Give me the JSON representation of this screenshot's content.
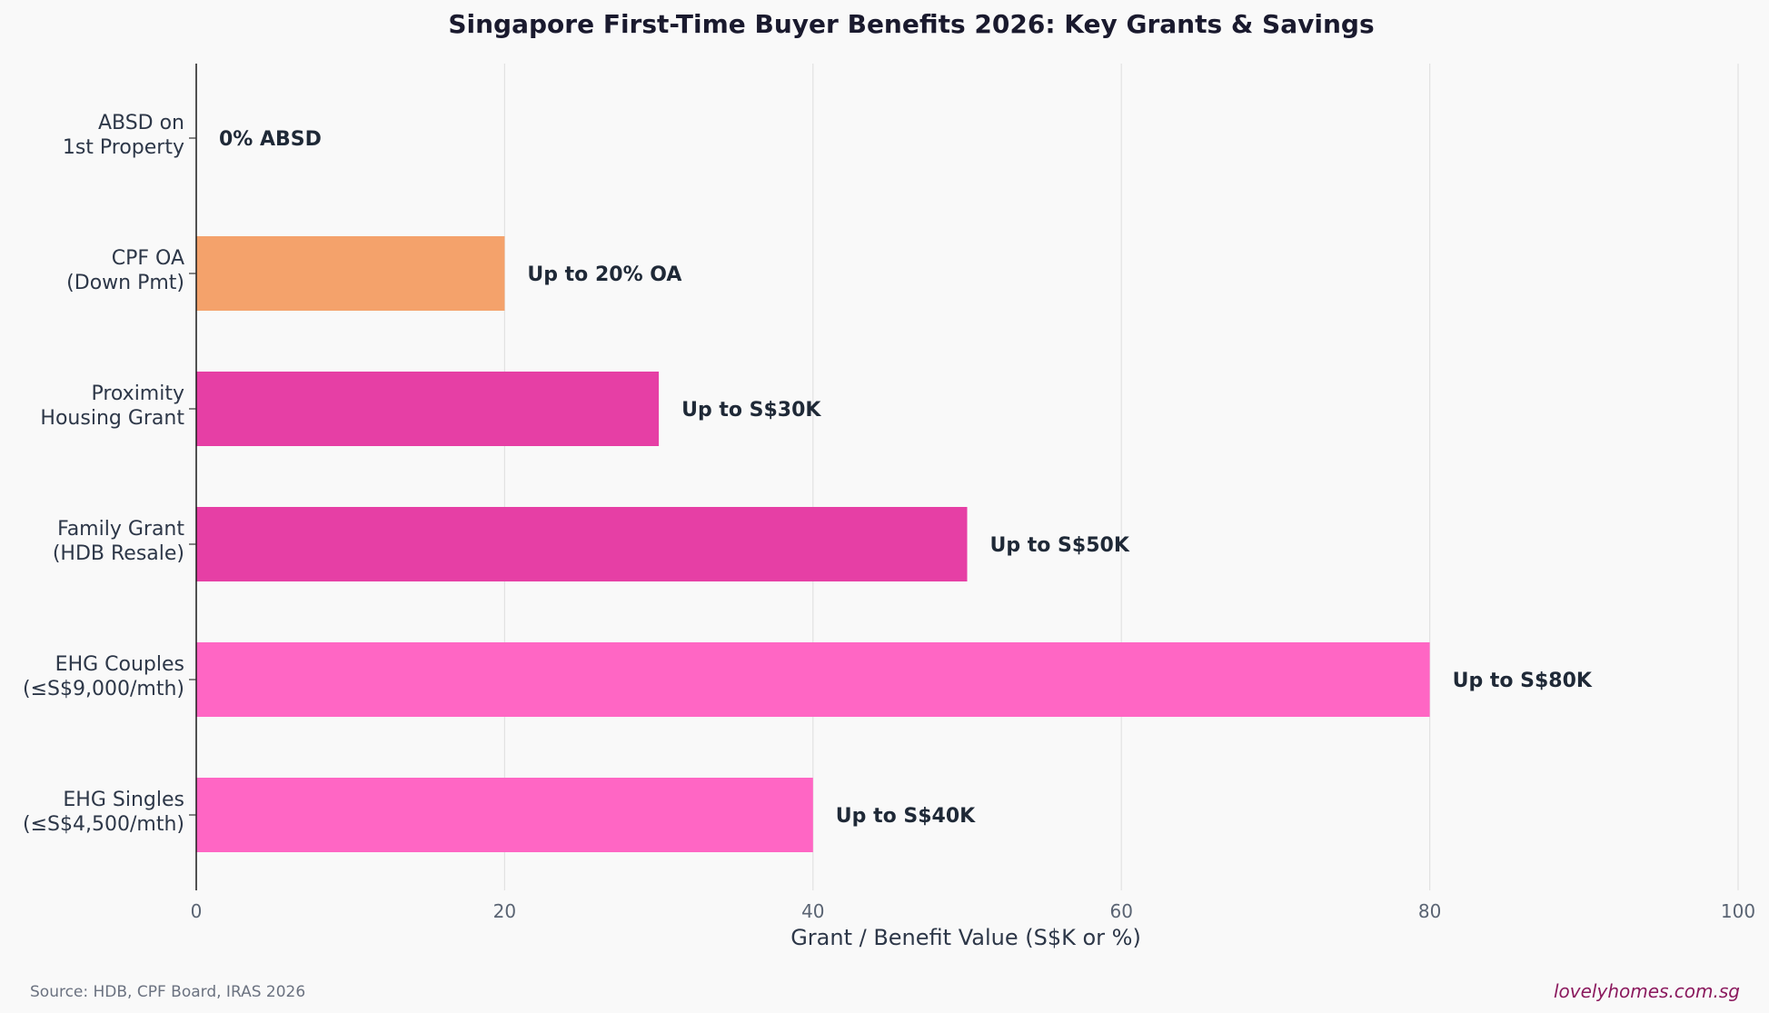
{
  "chart_data": {
    "type": "bar",
    "orientation": "horizontal",
    "title": "Singapore First-Time Buyer Benefits 2026: Key Grants & Savings",
    "xlabel": "Grant / Benefit Value (S$K or %)",
    "ylabel": "",
    "xlim": [
      0,
      100
    ],
    "xticks": [
      "0",
      "20",
      "40",
      "60",
      "80",
      "100"
    ],
    "grid": "vertical",
    "legend": "none",
    "categories": [
      [
        "ABSD on",
        "1st Property"
      ],
      [
        "CPF OA",
        "(Down Pmt)"
      ],
      [
        "Proximity",
        "Housing Grant"
      ],
      [
        "Family Grant",
        "(HDB Resale)"
      ],
      [
        "EHG Couples",
        "(≤S$9,000/mth)"
      ],
      [
        "EHG Singles",
        "(≤S$4,500/mth)"
      ]
    ],
    "values": [
      0,
      20,
      30,
      50,
      80,
      40
    ],
    "data_labels": [
      "0% ABSD",
      "Up to 20% OA",
      "Up to S$30K",
      "Up to S$50K",
      "Up to S$80K",
      "Up to S$40K"
    ],
    "colors": [
      "#f4a26b",
      "#f4a26b",
      "#e63fa5",
      "#e63fa5",
      "#ff66c4",
      "#ff66c4"
    ],
    "source": "Source: HDB, CPF Board, IRAS 2026",
    "brand": "lovelyhomes.com.sg"
  }
}
